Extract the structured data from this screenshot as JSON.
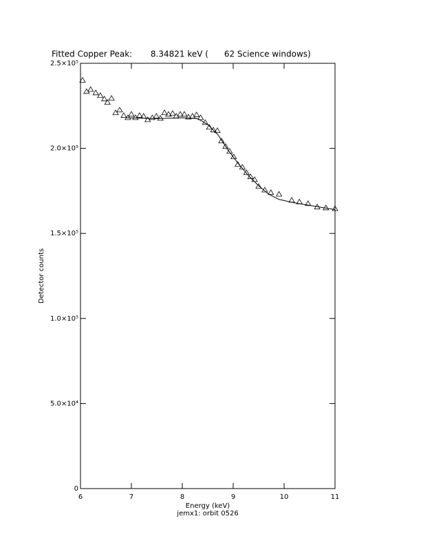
{
  "chart_data": {
    "type": "scatter",
    "title": "Fitted Copper Peak:       8.34821 keV (      62 Science windows)",
    "x_label": "Energy (keV)",
    "y_label": "Detector counts",
    "footnote": "jemx1: orbit 0526",
    "xlim": [
      6,
      11
    ],
    "ylim": [
      0,
      250000
    ],
    "xticks": [
      6,
      7,
      8,
      9,
      10,
      11
    ],
    "yticks": [
      0,
      {
        "value": 50000,
        "label": "5.0×10⁴"
      },
      {
        "value": 100000,
        "label": "1.0×10⁵"
      },
      {
        "value": 150000,
        "label": "1.5×10⁵"
      },
      {
        "value": 200000,
        "label": "2.0×10⁵"
      },
      {
        "value": 250000,
        "label": "2.5×10⁵"
      }
    ],
    "color": "#000000",
    "series": [
      {
        "marker": "triangle",
        "x": [
          6.04,
          6.12,
          6.2,
          6.3,
          6.39,
          6.47,
          6.53,
          6.61,
          6.69,
          6.77,
          6.85,
          6.93,
          7.0,
          7.08,
          7.16,
          7.24,
          7.32,
          7.41,
          7.49,
          7.57,
          7.65,
          7.73,
          7.81,
          7.88,
          7.96,
          8.04,
          8.12,
          8.2,
          8.28,
          8.36,
          8.45,
          8.53,
          8.61,
          8.69,
          8.77,
          8.85,
          8.93,
          9.01,
          9.09,
          9.18,
          9.26,
          9.34,
          9.42,
          9.5,
          9.62,
          9.74,
          9.9,
          10.15,
          10.3,
          10.47,
          10.65,
          10.82,
          11.0
        ],
        "values": [
          240000,
          233400,
          234600,
          232600,
          231000,
          229000,
          227000,
          229400,
          220900,
          222500,
          219300,
          218000,
          220000,
          218000,
          219300,
          218900,
          216800,
          218000,
          218900,
          217600,
          220900,
          220000,
          220500,
          218900,
          220000,
          220000,
          218400,
          218900,
          219700,
          218000,
          215200,
          212400,
          210800,
          210400,
          204300,
          201100,
          198200,
          195000,
          190500,
          188900,
          185700,
          183300,
          181600,
          177600,
          175500,
          174000,
          173000,
          169500,
          168500,
          167500,
          165500,
          165000,
          164500
        ]
      },
      {
        "marker": "line",
        "x": [
          6.9,
          7.5,
          8.0,
          8.3,
          8.5,
          8.7,
          8.9,
          9.1,
          9.3,
          9.5,
          9.7,
          9.9,
          10.2,
          10.6,
          11.0
        ],
        "values": [
          218000,
          217500,
          218000,
          217500,
          214000,
          208000,
          199000,
          191000,
          184000,
          178000,
          173000,
          170000,
          168000,
          166000,
          164000
        ]
      }
    ]
  }
}
